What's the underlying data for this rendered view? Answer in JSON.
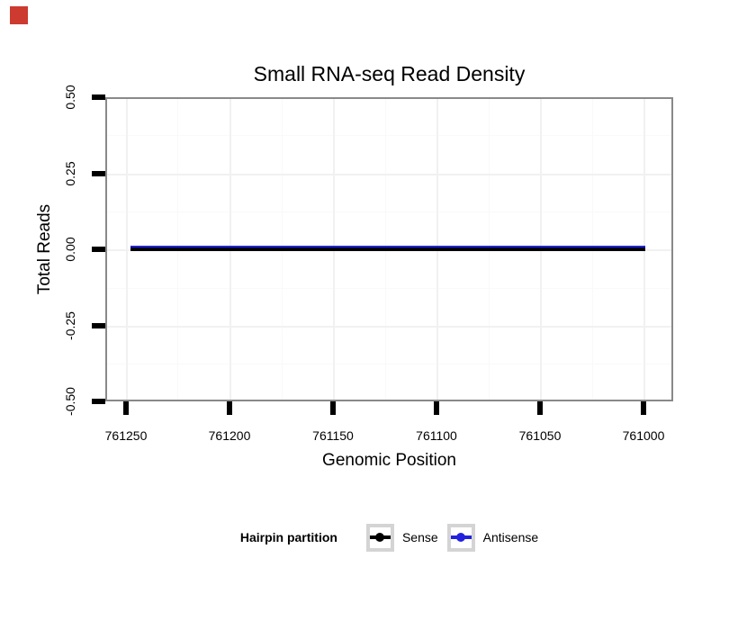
{
  "marker": {
    "color": "#cc3a30"
  },
  "chart": {
    "title": "Small RNA-seq Read Density",
    "xlabel": "Genomic Position",
    "ylabel": "Total Reads",
    "x_tick_labels": [
      "761250",
      "761200",
      "761150",
      "761100",
      "761050",
      "761000"
    ],
    "y_tick_labels": [
      "0.50",
      "0.25",
      "0.00",
      "-0.25",
      "-0.50"
    ],
    "legend": {
      "title": "Hairpin partition",
      "items": [
        {
          "label": "Sense",
          "color": "#000000"
        },
        {
          "label": "Antisense",
          "color": "#2222dd"
        }
      ]
    }
  },
  "colors": {
    "marker_red": "#cc3a30",
    "panel_border": "#898989",
    "grid_major": "#f1f1f1",
    "grid_minor": "#f9f9f9",
    "legend_key_border": "#d4d4d4",
    "sense": "#000000",
    "antisense": "#2222dd",
    "text": "#000000"
  },
  "chart_data": {
    "type": "line",
    "title": "Small RNA-seq Read Density",
    "xlabel": "Genomic Position",
    "ylabel": "Total Reads",
    "x_axis_reversed": true,
    "x_ticks": [
      761250,
      761200,
      761150,
      761100,
      761050,
      761000
    ],
    "y_ticks": [
      0.5,
      0.25,
      0.0,
      -0.25,
      -0.5
    ],
    "xlim": [
      761251,
      761000
    ],
    "ylim": [
      -0.5,
      0.5
    ],
    "grid": true,
    "legend_position": "bottom",
    "legend_title": "Hairpin partition",
    "series": [
      {
        "name": "Sense",
        "color": "#000000",
        "x": [
          761251,
          761000
        ],
        "y": [
          0,
          0
        ]
      },
      {
        "name": "Antisense",
        "color": "#2222dd",
        "x": [
          761251,
          761000
        ],
        "y": [
          0,
          0
        ]
      }
    ]
  }
}
